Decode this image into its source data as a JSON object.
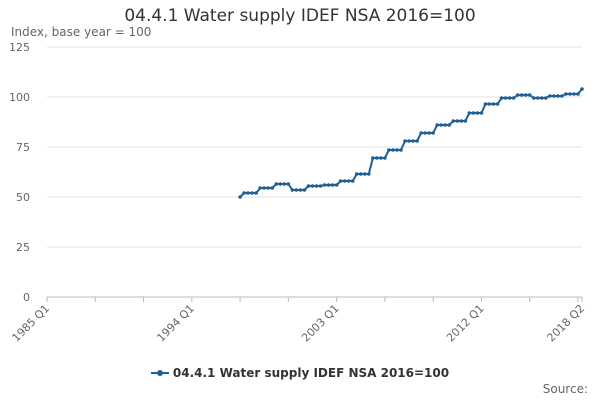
{
  "chart_data": {
    "type": "line",
    "title": "04.4.1 Water supply IDEF NSA 2016=100",
    "ylabel": "Index, base year = 100",
    "ylim": [
      0,
      125
    ],
    "yticks": [
      0,
      25,
      50,
      75,
      100,
      125
    ],
    "xticks": [
      "1985 Q1",
      "1994 Q1",
      "2003 Q1",
      "2012 Q1",
      "2018 Q2"
    ],
    "x_start": "1985 Q1",
    "x_end": "2018 Q2",
    "grid": true,
    "legend_position": "bottom",
    "series": [
      {
        "name": "04.4.1 Water supply IDEF NSA 2016=100",
        "color": "#206095",
        "x_start": "1997 Q1",
        "values": [
          50,
          52,
          52,
          52,
          52,
          54.5,
          54.5,
          54.5,
          54.5,
          56.5,
          56.5,
          56.5,
          56.5,
          53.5,
          53.5,
          53.5,
          53.5,
          55.5,
          55.5,
          55.5,
          55.5,
          56,
          56,
          56,
          56,
          58,
          58,
          58,
          58,
          61.5,
          61.5,
          61.5,
          61.5,
          69.5,
          69.5,
          69.5,
          69.5,
          73.5,
          73.5,
          73.5,
          73.5,
          78,
          78,
          78,
          78,
          82,
          82,
          82,
          82,
          86,
          86,
          86,
          86,
          88,
          88,
          88,
          88,
          92,
          92,
          92,
          92,
          96.5,
          96.5,
          96.5,
          96.5,
          99.5,
          99.5,
          99.5,
          99.5,
          101,
          101,
          101,
          101,
          99.5,
          99.5,
          99.5,
          99.5,
          100.5,
          100.5,
          100.5,
          100.5,
          101.5,
          101.5,
          101.5,
          101.5,
          104
        ]
      }
    ]
  },
  "source_label": "Source:"
}
